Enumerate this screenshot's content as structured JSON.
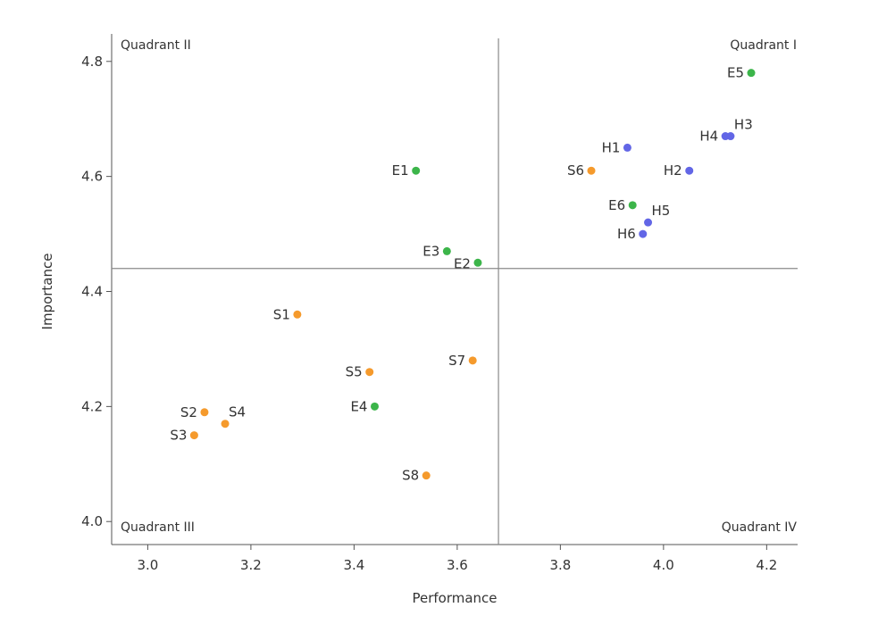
{
  "chart_data": {
    "type": "scatter",
    "xlabel": "Performance",
    "ylabel": "Importance",
    "xlim": [
      2.93,
      4.26
    ],
    "ylim": [
      3.96,
      4.84
    ],
    "x_ticks": [
      "3.0",
      "3.2",
      "3.4",
      "3.6",
      "3.8",
      "4.0",
      "4.2"
    ],
    "y_ticks": [
      "4.0",
      "4.2",
      "4.4",
      "4.6",
      "4.8"
    ],
    "x_tick_values": [
      3.0,
      3.2,
      3.4,
      3.6,
      3.8,
      4.0,
      4.2
    ],
    "y_tick_values": [
      4.0,
      4.2,
      4.4,
      4.6,
      4.8
    ],
    "mean_lines": {
      "x": 3.68,
      "y": 4.44
    },
    "quadrant_labels": {
      "top_left": "Quadrant II",
      "top_right": "Quadrant I",
      "bottom_left": "Quadrant III",
      "bottom_right": "Quadrant IV"
    },
    "colors": {
      "E": "#3cb54a",
      "H": "#6266e6",
      "S": "#f59a2c"
    },
    "points": [
      {
        "label": "E1",
        "x": 3.52,
        "y": 4.61,
        "group": "E",
        "pos": "left"
      },
      {
        "label": "E2",
        "x": 3.64,
        "y": 4.45,
        "group": "E",
        "pos": "left-low"
      },
      {
        "label": "E3",
        "x": 3.58,
        "y": 4.47,
        "group": "E",
        "pos": "left"
      },
      {
        "label": "E4",
        "x": 3.44,
        "y": 4.2,
        "group": "E",
        "pos": "left"
      },
      {
        "label": "E5",
        "x": 4.17,
        "y": 4.78,
        "group": "E",
        "pos": "left"
      },
      {
        "label": "E6",
        "x": 3.94,
        "y": 4.55,
        "group": "E",
        "pos": "left"
      },
      {
        "label": "H1",
        "x": 3.93,
        "y": 4.65,
        "group": "H",
        "pos": "left"
      },
      {
        "label": "H2",
        "x": 4.05,
        "y": 4.61,
        "group": "H",
        "pos": "left"
      },
      {
        "label": "H3",
        "x": 4.13,
        "y": 4.67,
        "group": "H",
        "pos": "right-up"
      },
      {
        "label": "H4",
        "x": 4.12,
        "y": 4.67,
        "group": "H",
        "pos": "left"
      },
      {
        "label": "H5",
        "x": 3.97,
        "y": 4.52,
        "group": "H",
        "pos": "right-up"
      },
      {
        "label": "H6",
        "x": 3.96,
        "y": 4.5,
        "group": "H",
        "pos": "left"
      },
      {
        "label": "S1",
        "x": 3.29,
        "y": 4.36,
        "group": "S",
        "pos": "left"
      },
      {
        "label": "S2",
        "x": 3.11,
        "y": 4.19,
        "group": "S",
        "pos": "left"
      },
      {
        "label": "S3",
        "x": 3.09,
        "y": 4.15,
        "group": "S",
        "pos": "left"
      },
      {
        "label": "S4",
        "x": 3.15,
        "y": 4.17,
        "group": "S",
        "pos": "right-up"
      },
      {
        "label": "S5",
        "x": 3.43,
        "y": 4.26,
        "group": "S",
        "pos": "left"
      },
      {
        "label": "S6",
        "x": 3.86,
        "y": 4.61,
        "group": "S",
        "pos": "left"
      },
      {
        "label": "S7",
        "x": 3.63,
        "y": 4.28,
        "group": "S",
        "pos": "left"
      },
      {
        "label": "S8",
        "x": 3.54,
        "y": 4.08,
        "group": "S",
        "pos": "left"
      }
    ]
  }
}
